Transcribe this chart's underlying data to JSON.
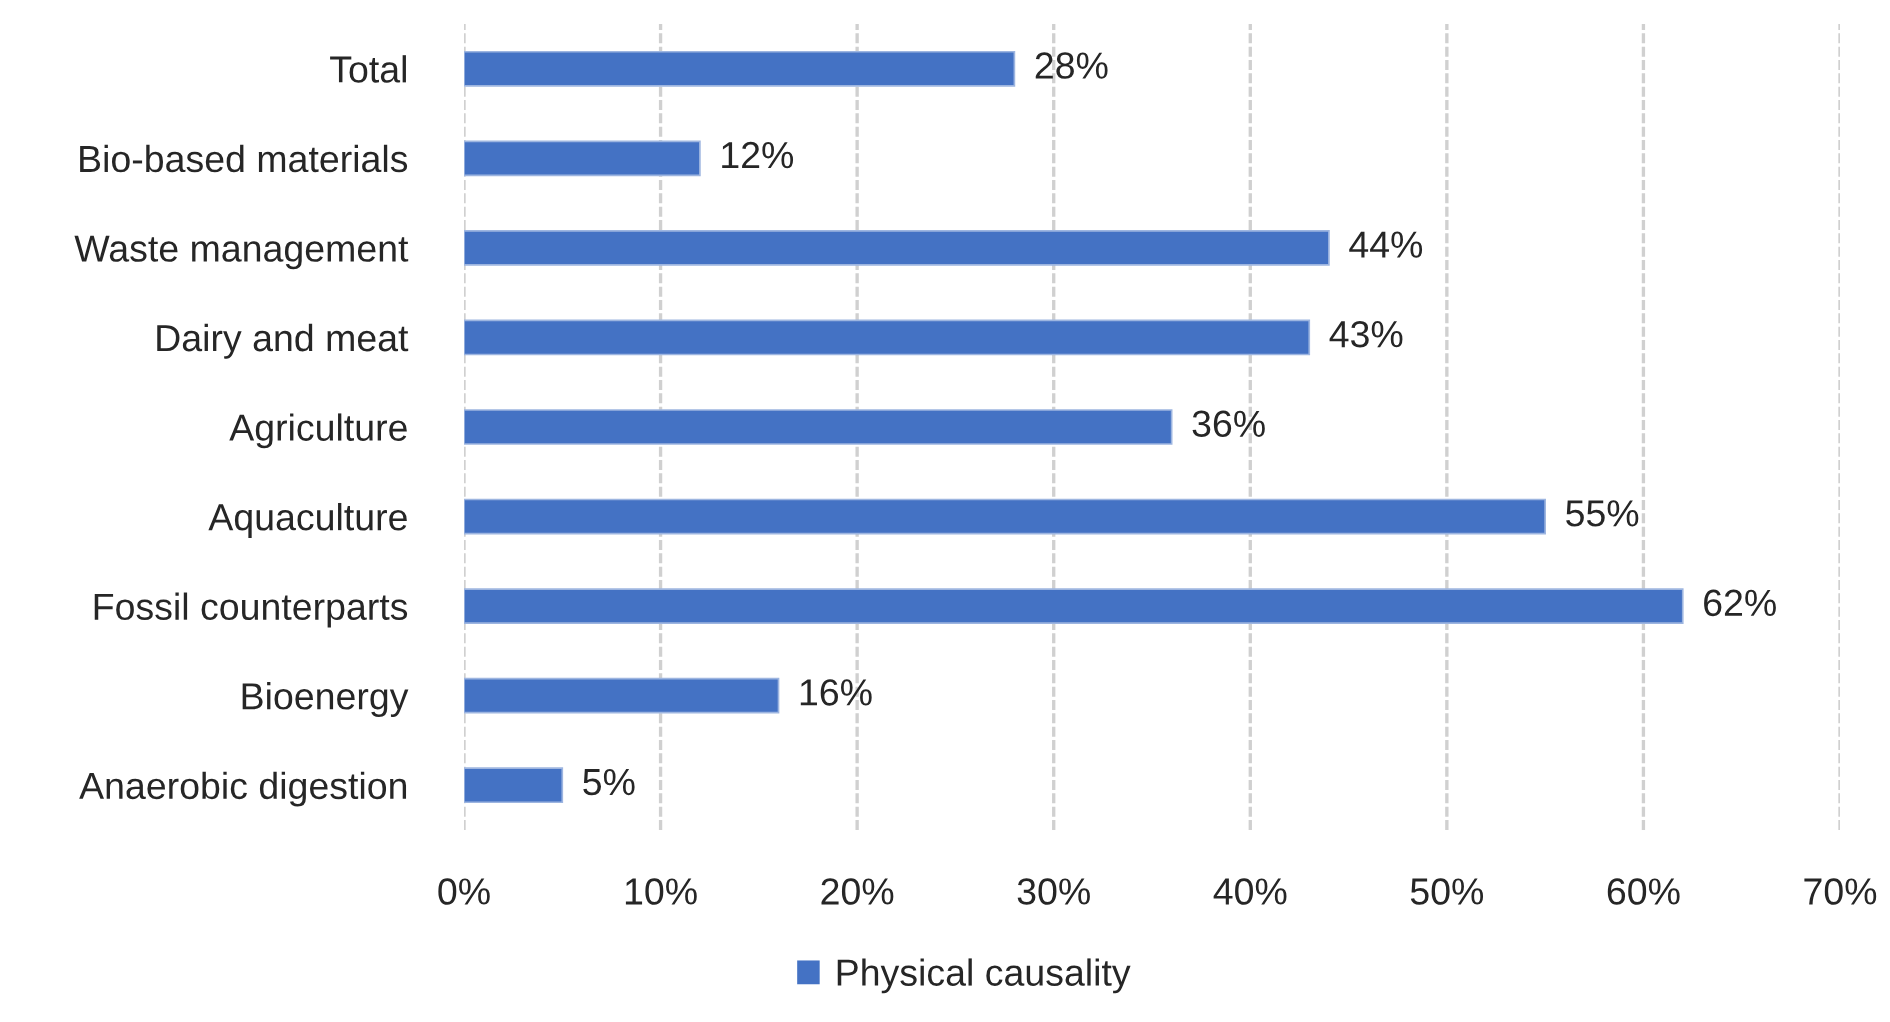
{
  "chart_data": {
    "type": "bar",
    "orientation": "horizontal",
    "categories": [
      "Total",
      "Bio-based materials",
      "Waste management",
      "Dairy and meat",
      "Agriculture",
      "Aquaculture",
      "Fossil counterparts",
      "Bioenergy",
      "Anaerobic digestion"
    ],
    "series": [
      {
        "name": "Physical causality",
        "color": "#4472c4",
        "values": [
          28,
          12,
          44,
          43,
          36,
          55,
          62,
          16,
          5
        ],
        "value_labels": [
          "28%",
          "12%",
          "44%",
          "43%",
          "36%",
          "55%",
          "62%",
          "16%",
          "5%"
        ]
      }
    ],
    "xlim": [
      0,
      70
    ],
    "xticks": [
      {
        "value": 0,
        "label": "0%"
      },
      {
        "value": 10,
        "label": "10%"
      },
      {
        "value": 20,
        "label": "20%"
      },
      {
        "value": 30,
        "label": "30%"
      },
      {
        "value": 40,
        "label": "40%"
      },
      {
        "value": 50,
        "label": "50%"
      },
      {
        "value": 60,
        "label": "60%"
      },
      {
        "value": 70,
        "label": "70%"
      }
    ],
    "grid": "x",
    "legend": "bottom"
  }
}
